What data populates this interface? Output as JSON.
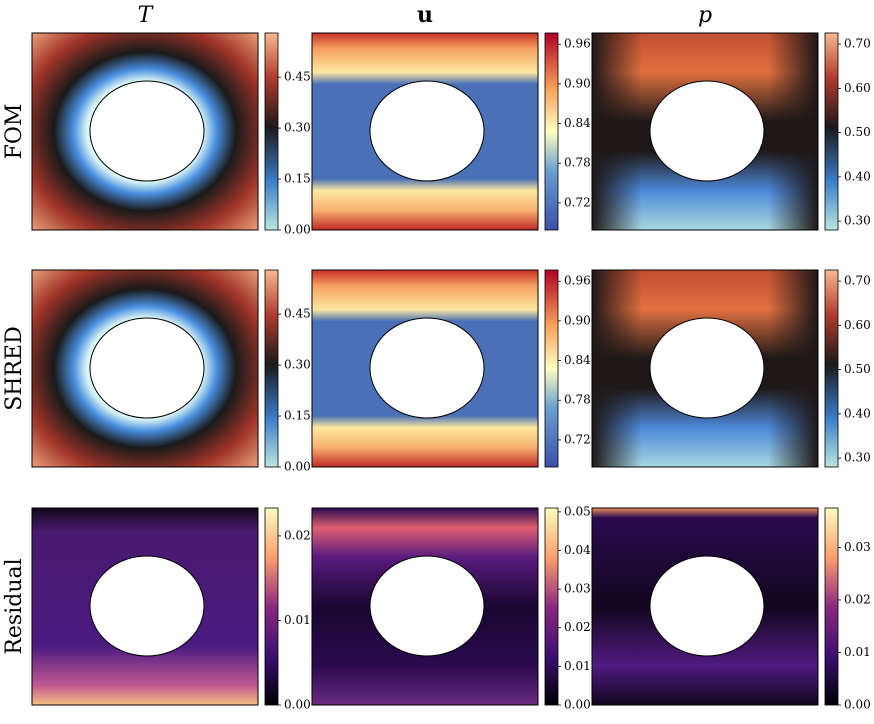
{
  "chart_data": {
    "type": "heatmap-grid",
    "column_titles": [
      "T",
      "u",
      "p"
    ],
    "row_labels": [
      "FOM",
      "SHRED",
      "Residual"
    ],
    "panels": [
      [
        {
          "clim": [
            0,
            0.58
          ],
          "ticks": [
            {
              "value": 0,
              "label": "0.00"
            },
            {
              "value": 0.15,
              "label": "0.15"
            },
            {
              "value": 0.3,
              "label": "0.30"
            },
            {
              "value": 0.45,
              "label": "0.45"
            }
          ]
        },
        {
          "clim": [
            0.679,
            0.977
          ],
          "ticks": [
            {
              "value": 0.72,
              "label": "0.72"
            },
            {
              "value": 0.78,
              "label": "0.78"
            },
            {
              "value": 0.84,
              "label": "0.84"
            },
            {
              "value": 0.9,
              "label": "0.90"
            },
            {
              "value": 0.96,
              "label": "0.96"
            }
          ]
        },
        {
          "clim": [
            0.28,
            0.725
          ],
          "ticks": [
            {
              "value": 0.3,
              "label": "0.30"
            },
            {
              "value": 0.4,
              "label": "0.40"
            },
            {
              "value": 0.5,
              "label": "0.50"
            },
            {
              "value": 0.6,
              "label": "0.60"
            },
            {
              "value": 0.7,
              "label": "0.70"
            }
          ]
        }
      ],
      [
        {
          "clim": [
            0,
            0.58
          ],
          "ticks": [
            {
              "value": 0,
              "label": "0.00"
            },
            {
              "value": 0.15,
              "label": "0.15"
            },
            {
              "value": 0.3,
              "label": "0.30"
            },
            {
              "value": 0.45,
              "label": "0.45"
            }
          ]
        },
        {
          "clim": [
            0.679,
            0.977
          ],
          "ticks": [
            {
              "value": 0.72,
              "label": "0.72"
            },
            {
              "value": 0.78,
              "label": "0.78"
            },
            {
              "value": 0.84,
              "label": "0.84"
            },
            {
              "value": 0.9,
              "label": "0.90"
            },
            {
              "value": 0.96,
              "label": "0.96"
            }
          ]
        },
        {
          "clim": [
            0.28,
            0.725
          ],
          "ticks": [
            {
              "value": 0.3,
              "label": "0.30"
            },
            {
              "value": 0.4,
              "label": "0.40"
            },
            {
              "value": 0.5,
              "label": "0.50"
            },
            {
              "value": 0.6,
              "label": "0.60"
            },
            {
              "value": 0.7,
              "label": "0.70"
            }
          ]
        }
      ],
      [
        {
          "clim": [
            0,
            0.0233
          ],
          "ticks": [
            {
              "value": 0,
              "label": "0.00"
            },
            {
              "value": 0.01,
              "label": "0.01"
            },
            {
              "value": 0.02,
              "label": "0.02"
            }
          ]
        },
        {
          "clim": [
            0,
            0.051
          ],
          "ticks": [
            {
              "value": 0,
              "label": "0.00"
            },
            {
              "value": 0.01,
              "label": "0.01"
            },
            {
              "value": 0.02,
              "label": "0.02"
            },
            {
              "value": 0.03,
              "label": "0.03"
            },
            {
              "value": 0.04,
              "label": "0.04"
            },
            {
              "value": 0.05,
              "label": "0.05"
            }
          ]
        },
        {
          "clim": [
            0,
            0.0375
          ],
          "ticks": [
            {
              "value": 0,
              "label": "0.00"
            },
            {
              "value": 0.01,
              "label": "0.01"
            },
            {
              "value": 0.02,
              "label": "0.02"
            },
            {
              "value": 0.03,
              "label": "0.03"
            }
          ]
        }
      ]
    ]
  }
}
